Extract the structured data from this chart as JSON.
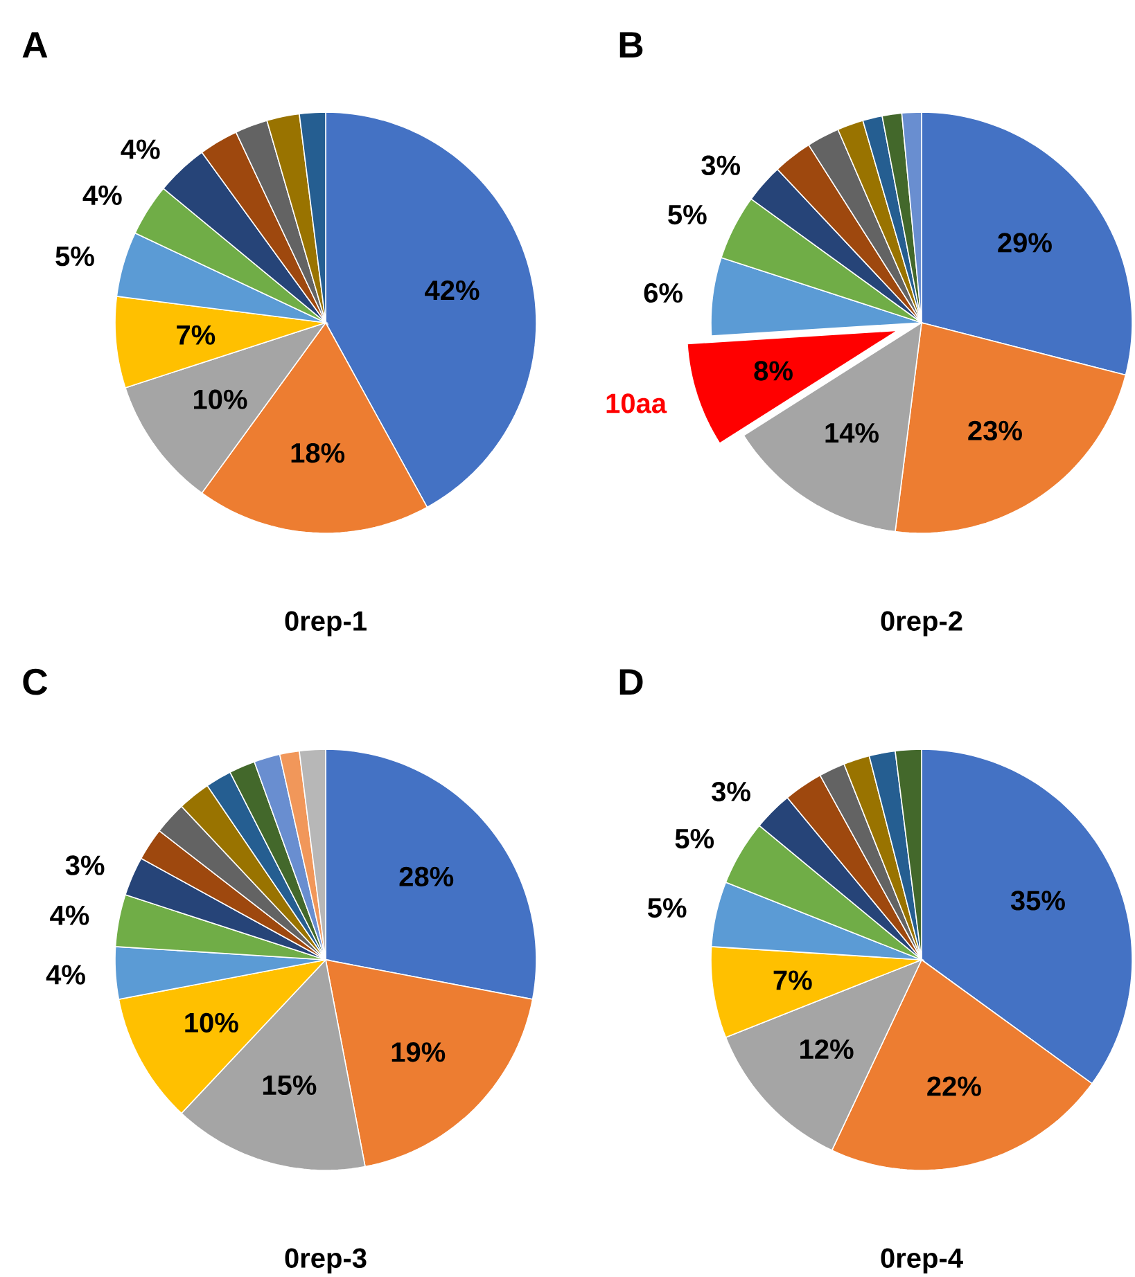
{
  "chart_data": [
    {
      "type": "pie",
      "title": "0rep-1",
      "annotations": [
        "A"
      ],
      "categories": [
        null,
        null,
        null,
        null,
        null,
        null,
        null,
        null,
        null,
        null,
        null
      ],
      "values": [
        42,
        18,
        10,
        7,
        5,
        4,
        4,
        3,
        2.5,
        2.5,
        2
      ],
      "colors": [
        "#4472c4",
        "#ed7d31",
        "#a5a5a5",
        "#ffc000",
        "#5b9bd5",
        "#70ad47",
        "#264478",
        "#9e480e",
        "#636363",
        "#997300",
        "#255e91"
      ],
      "value_labels": [
        "42%",
        "18%",
        "10%",
        "7%",
        "5%",
        "4%",
        "4%",
        null,
        null,
        null,
        null
      ]
    },
    {
      "type": "pie",
      "title": "0rep-2",
      "annotations": [
        "B"
      ],
      "categories": [
        null,
        null,
        null,
        "10aa",
        null,
        null,
        null,
        null,
        null,
        null,
        null,
        null,
        null
      ],
      "values": [
        29,
        23,
        14,
        8,
        6,
        5,
        3,
        3,
        2.5,
        2,
        1.5,
        1.5,
        1.5
      ],
      "colors": [
        "#4472c4",
        "#ed7d31",
        "#a5a5a5",
        "#ff0000",
        "#5b9bd5",
        "#70ad47",
        "#264478",
        "#9e480e",
        "#636363",
        "#997300",
        "#255e91",
        "#43682b",
        "#698ed0"
      ],
      "value_labels": [
        "29%",
        "23%",
        "14%",
        "8%",
        "6%",
        "5%",
        "3%",
        null,
        null,
        null,
        null,
        null,
        null
      ]
    },
    {
      "type": "pie",
      "title": "0rep-3",
      "annotations": [
        "C"
      ],
      "categories": [
        null,
        null,
        null,
        null,
        null,
        null,
        null,
        null,
        null,
        null,
        null,
        null,
        null,
        null,
        null
      ],
      "values": [
        28,
        19,
        15,
        10,
        4,
        4,
        3,
        2.5,
        2.5,
        2.5,
        2,
        2,
        2,
        1.5,
        2
      ],
      "colors": [
        "#4472c4",
        "#ed7d31",
        "#a5a5a5",
        "#ffc000",
        "#5b9bd5",
        "#70ad47",
        "#264478",
        "#9e480e",
        "#636363",
        "#997300",
        "#255e91",
        "#43682b",
        "#698ed0",
        "#f1975a",
        "#b7b7b7"
      ],
      "value_labels": [
        "28%",
        "19%",
        "15%",
        "10%",
        "4%",
        "4%",
        "3%",
        null,
        null,
        null,
        null,
        null,
        null,
        null,
        null
      ]
    },
    {
      "type": "pie",
      "title": "0rep-4",
      "annotations": [
        "D"
      ],
      "categories": [
        null,
        null,
        null,
        null,
        null,
        null,
        null,
        null,
        null,
        null,
        null,
        null
      ],
      "values": [
        35,
        22,
        12,
        7,
        5,
        5,
        3,
        3,
        2,
        2,
        2,
        2
      ],
      "colors": [
        "#4472c4",
        "#ed7d31",
        "#a5a5a5",
        "#ffc000",
        "#5b9bd5",
        "#70ad47",
        "#264478",
        "#9e480e",
        "#636363",
        "#997300",
        "#255e91",
        "#43682b"
      ],
      "value_labels": [
        "35%",
        "22%",
        "12%",
        "7%",
        "5%",
        "5%",
        "3%",
        null,
        null,
        null,
        null,
        null
      ]
    }
  ]
}
